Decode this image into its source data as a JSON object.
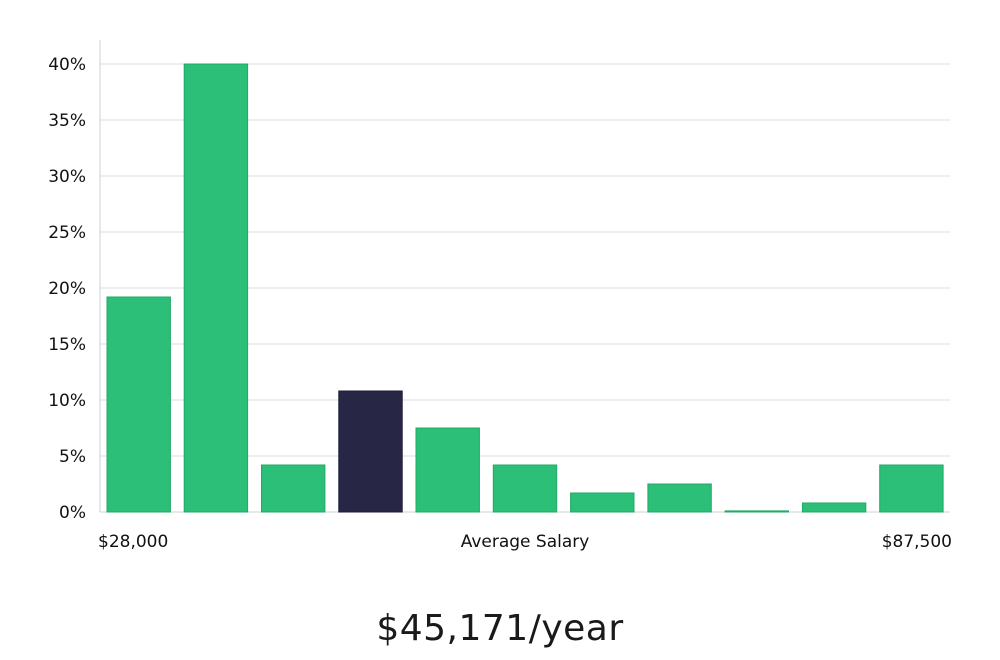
{
  "chart_data": {
    "type": "bar",
    "xlabel": "Average Salary",
    "x_range_labels": [
      "$28,000",
      "$87,500"
    ],
    "y_tick_labels": [
      "0%",
      "5%",
      "10%",
      "15%",
      "20%",
      "25%",
      "30%",
      "35%",
      "40%"
    ],
    "ylim": [
      0,
      42
    ],
    "y_unit": "%",
    "grid": true,
    "values": [
      19.2,
      40.0,
      4.2,
      10.8,
      7.5,
      4.2,
      1.7,
      2.5,
      0.1,
      0.8,
      4.2
    ],
    "highlight_index": 3,
    "colors": {
      "bar": "#2bbf78",
      "bar_stroke": "#22a866",
      "highlight": "#272645",
      "grid": "#dcdde3",
      "axis": "#cfd0d6"
    }
  },
  "summary": {
    "salary_text": "$45,171/year"
  }
}
